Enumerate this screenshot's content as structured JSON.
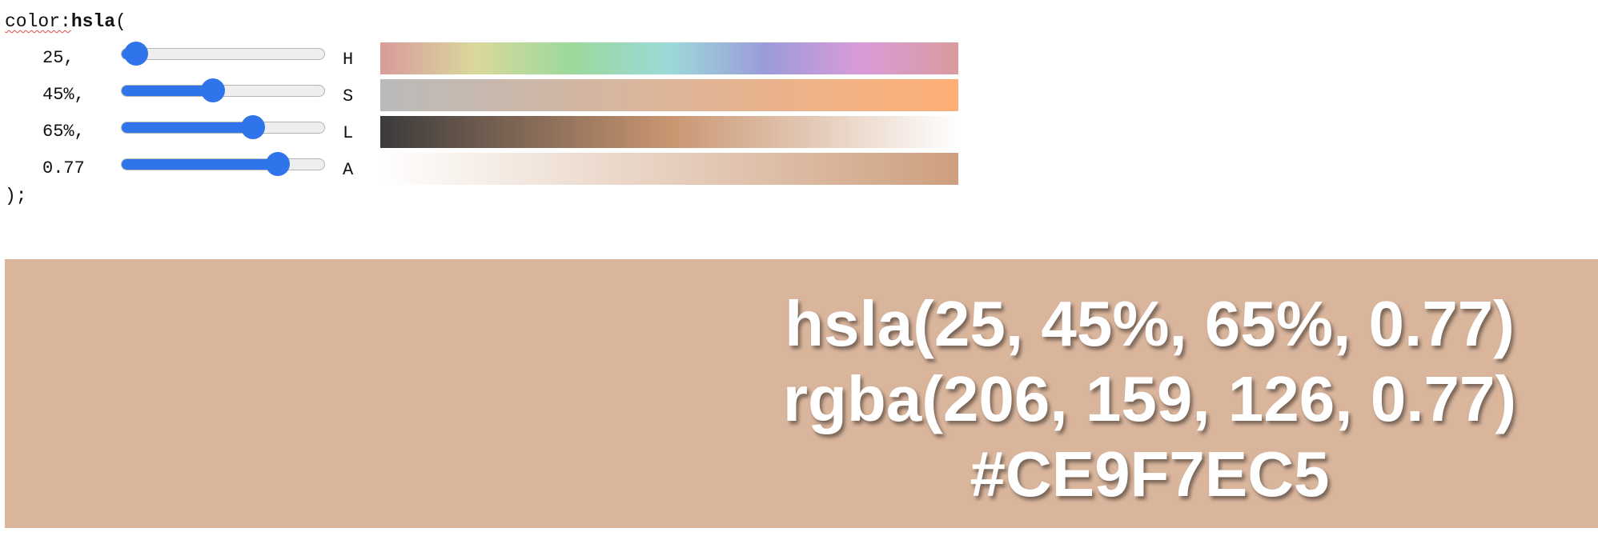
{
  "code": {
    "prefix": "color:",
    "function": "hsla",
    "open_paren": "(",
    "close": ");"
  },
  "sliders": [
    {
      "value_text": "25,",
      "letter": "H",
      "level_fraction": 0.07
    },
    {
      "value_text": "45%,",
      "letter": "S",
      "level_fraction": 0.45
    },
    {
      "value_text": "65%,",
      "letter": "L",
      "level_fraction": 0.65
    },
    {
      "value_text": "0.77",
      "letter": "A",
      "level_fraction": 0.77
    }
  ],
  "preview": {
    "background_color": "rgba(206, 159, 126, 0.77)",
    "hsla": "hsla(25, 45%, 65%, 0.77)",
    "rgba": "rgba(206, 159, 126, 0.77)",
    "hex": "#CE9F7EC5"
  },
  "colors": {
    "slider_accent": "#2f74ea",
    "preview_text": "#ffffff"
  }
}
